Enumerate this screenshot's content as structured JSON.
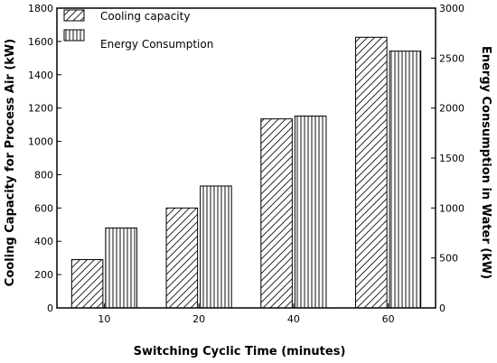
{
  "chart_data": {
    "type": "bar",
    "xlabel": "Switching Cyclic Time (minutes)",
    "ylabel_left": "Cooling Capacity for Process Air (kW)",
    "ylabel_right": "Energy Consumption in Water (kW)",
    "categories": [
      "10",
      "20",
      "40",
      "60"
    ],
    "ylim_left": [
      0,
      1800
    ],
    "ylim_right": [
      0,
      3000
    ],
    "yticks_left": [
      0,
      200,
      400,
      600,
      800,
      1000,
      1200,
      1400,
      1600,
      1800
    ],
    "yticks_right": [
      0,
      500,
      1000,
      1500,
      2000,
      2500,
      3000
    ],
    "grid": false,
    "legend_position": "top-left",
    "series": [
      {
        "name": "Cooling capacity",
        "axis": "left",
        "pattern": "diagonal-hatch",
        "values": [
          290,
          600,
          1135,
          1625
        ]
      },
      {
        "name": "Energy Consumption",
        "axis": "right",
        "pattern": "vertical-hatch",
        "values": [
          800,
          1220,
          1920,
          2570
        ]
      }
    ]
  }
}
